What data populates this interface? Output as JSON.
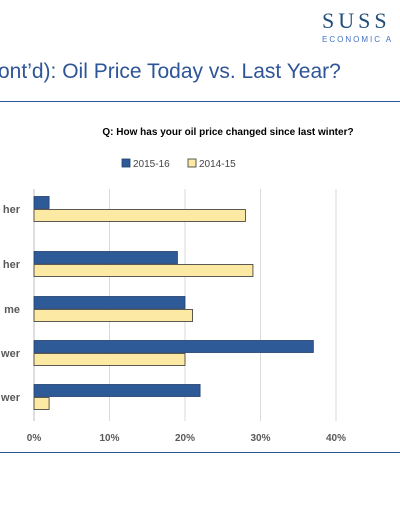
{
  "brand": {
    "name": "SUSS",
    "subtitle": "ECONOMIC A"
  },
  "slide_title": "ont’d): Oil Price Today vs. Last Year?",
  "colors": {
    "series1": "#2e5b98",
    "series2": "#fce9a3",
    "title": "#2e5597",
    "grid": "#d9d9d9"
  },
  "chart_data": {
    "type": "bar",
    "orientation": "horizontal",
    "title": "Q: How has your oil price changed since last winter?",
    "categories": [
      "her",
      "her",
      "me",
      "wer",
      "wer"
    ],
    "series": [
      {
        "name": "2015-16",
        "values": [
          2,
          19,
          20,
          37,
          22
        ]
      },
      {
        "name": "2014-15",
        "values": [
          28,
          29,
          21,
          20,
          2
        ]
      }
    ],
    "xlim": [
      0,
      40
    ],
    "xticks": [
      "0%",
      "10%",
      "20%",
      "30%",
      "40%"
    ],
    "tick_values": [
      0,
      10,
      20,
      30,
      40
    ],
    "grid": true,
    "legend_position": "top"
  }
}
